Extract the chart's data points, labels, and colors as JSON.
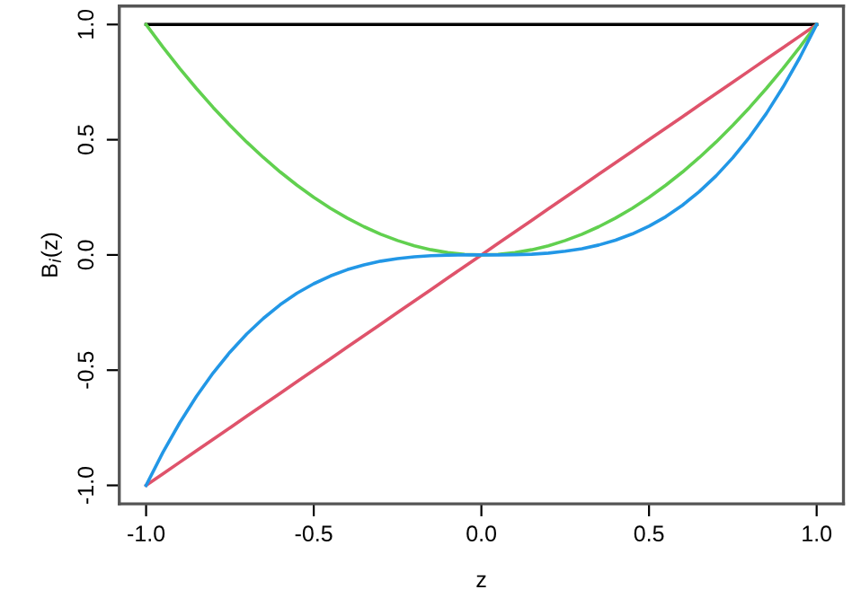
{
  "chart_data": {
    "type": "line",
    "xlabel": "z",
    "ylabel": "B$_{i}$(z)",
    "x": [
      -1,
      -0.95,
      -0.9,
      -0.85,
      -0.8,
      -0.75,
      -0.7,
      -0.65,
      -0.6,
      -0.55,
      -0.5,
      -0.45,
      -0.4,
      -0.35,
      -0.3,
      -0.25,
      -0.2,
      -0.15,
      -0.1,
      -0.05,
      0,
      0.05,
      0.1,
      0.15,
      0.2,
      0.25,
      0.3,
      0.35,
      0.4,
      0.45,
      0.5,
      0.55,
      0.6,
      0.65,
      0.7,
      0.75,
      0.8,
      0.85,
      0.9,
      0.95,
      1
    ],
    "series": [
      {
        "color": "#000000",
        "values": [
          1,
          1,
          1,
          1,
          1,
          1,
          1,
          1,
          1,
          1,
          1,
          1,
          1,
          1,
          1,
          1,
          1,
          1,
          1,
          1,
          1,
          1,
          1,
          1,
          1,
          1,
          1,
          1,
          1,
          1,
          1,
          1,
          1,
          1,
          1,
          1,
          1,
          1,
          1,
          1,
          1
        ]
      },
      {
        "color": "#df536b",
        "values": [
          -1,
          -0.95,
          -0.9,
          -0.85,
          -0.8,
          -0.75,
          -0.7,
          -0.65,
          -0.6,
          -0.55,
          -0.5,
          -0.45,
          -0.4,
          -0.35,
          -0.3,
          -0.25,
          -0.2,
          -0.15,
          -0.1,
          -0.05,
          0,
          0.05,
          0.1,
          0.15,
          0.2,
          0.25,
          0.3,
          0.35,
          0.4,
          0.45,
          0.5,
          0.55,
          0.6,
          0.65,
          0.7,
          0.75,
          0.8,
          0.85,
          0.9,
          0.95,
          1
        ]
      },
      {
        "color": "#61d04f",
        "values": [
          1,
          0.9025,
          0.81,
          0.7225,
          0.64,
          0.5625,
          0.49,
          0.4225,
          0.36,
          0.3025,
          0.25,
          0.2025,
          0.16,
          0.1225,
          0.09,
          0.0625,
          0.04,
          0.0225,
          0.01,
          0.0025,
          0,
          0.0025,
          0.01,
          0.0225,
          0.04,
          0.0625,
          0.09,
          0.1225,
          0.16,
          0.2025,
          0.25,
          0.3025,
          0.36,
          0.4225,
          0.49,
          0.5625,
          0.64,
          0.7225,
          0.81,
          0.9025,
          1
        ]
      },
      {
        "color": "#2297e6",
        "values": [
          -1,
          -0.857,
          -0.729,
          -0.614,
          -0.512,
          -0.422,
          -0.343,
          -0.275,
          -0.216,
          -0.166,
          -0.125,
          -0.091,
          -0.064,
          -0.043,
          -0.027,
          -0.016,
          -0.008,
          -0.003,
          -0.001,
          0,
          0,
          0,
          0.001,
          0.003,
          0.008,
          0.016,
          0.027,
          0.043,
          0.064,
          0.091,
          0.125,
          0.166,
          0.216,
          0.275,
          0.343,
          0.422,
          0.512,
          0.614,
          0.729,
          0.857,
          1
        ]
      }
    ],
    "xlim": [
      -1.08,
      1.08
    ],
    "ylim": [
      -1.08,
      1.08
    ],
    "xticks": [
      {
        "value": -1,
        "label": "-1.0"
      },
      {
        "value": -0.5,
        "label": "-0.5"
      },
      {
        "value": 0,
        "label": "0.0"
      },
      {
        "value": 0.5,
        "label": "0.5"
      },
      {
        "value": 1,
        "label": "1.0"
      }
    ],
    "yticks": [
      {
        "value": -1,
        "label": "-1.0"
      },
      {
        "value": -0.5,
        "label": "-0.5"
      },
      {
        "value": 0,
        "label": "0.0"
      },
      {
        "value": 0.5,
        "label": "0.5"
      },
      {
        "value": 1,
        "label": "1.0"
      }
    ],
    "grid": false,
    "legend": false,
    "marker": "none",
    "line_style": "solid"
  }
}
